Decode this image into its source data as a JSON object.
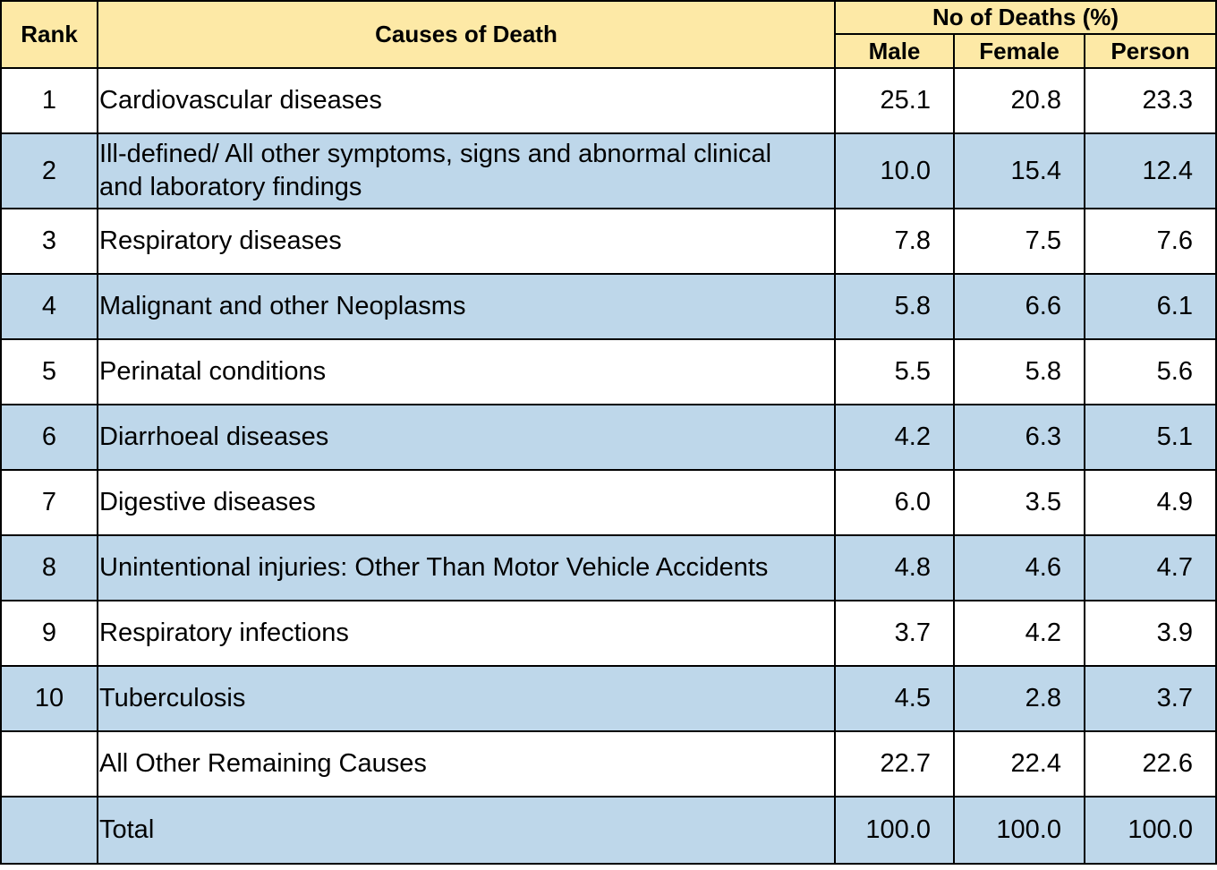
{
  "chart_data": {
    "type": "table",
    "headers": {
      "rank": "Rank",
      "cause": "Causes of Death",
      "group": "No of Deaths (%)",
      "male": "Male",
      "female": "Female",
      "person": "Person"
    },
    "rows": [
      {
        "rank": "1",
        "cause": "Cardiovascular diseases",
        "male": "25.1",
        "female": "20.8",
        "person": "23.3"
      },
      {
        "rank": "2",
        "cause": "Ill-defined/ All other symptoms, signs and abnormal clinical and laboratory findings",
        "male": "10.0",
        "female": "15.4",
        "person": "12.4"
      },
      {
        "rank": "3",
        "cause": "Respiratory diseases",
        "male": "7.8",
        "female": "7.5",
        "person": "7.6"
      },
      {
        "rank": "4",
        "cause": "Malignant and other Neoplasms",
        "male": "5.8",
        "female": "6.6",
        "person": "6.1"
      },
      {
        "rank": "5",
        "cause": "Perinatal conditions",
        "male": "5.5",
        "female": "5.8",
        "person": "5.6"
      },
      {
        "rank": "6",
        "cause": "Diarrhoeal diseases",
        "male": "4.2",
        "female": "6.3",
        "person": "5.1"
      },
      {
        "rank": "7",
        "cause": "Digestive diseases",
        "male": "6.0",
        "female": "3.5",
        "person": "4.9"
      },
      {
        "rank": "8",
        "cause": "Unintentional injuries: Other Than Motor Vehicle Accidents",
        "male": "4.8",
        "female": "4.6",
        "person": "4.7"
      },
      {
        "rank": "9",
        "cause": "Respiratory infections",
        "male": "3.7",
        "female": "4.2",
        "person": "3.9"
      },
      {
        "rank": "10",
        "cause": "Tuberculosis",
        "male": "4.5",
        "female": "2.8",
        "person": "3.7"
      },
      {
        "rank": "",
        "cause": "All Other Remaining Causes",
        "male": "22.7",
        "female": "22.4",
        "person": "22.6"
      },
      {
        "rank": "",
        "cause": "Total",
        "male": "100.0",
        "female": "100.0",
        "person": "100.0"
      }
    ]
  },
  "colors": {
    "header_fill": "#fde9a6",
    "band_fill": "#bed7ea",
    "row_fill": "#ffffff",
    "border": "#000000"
  }
}
